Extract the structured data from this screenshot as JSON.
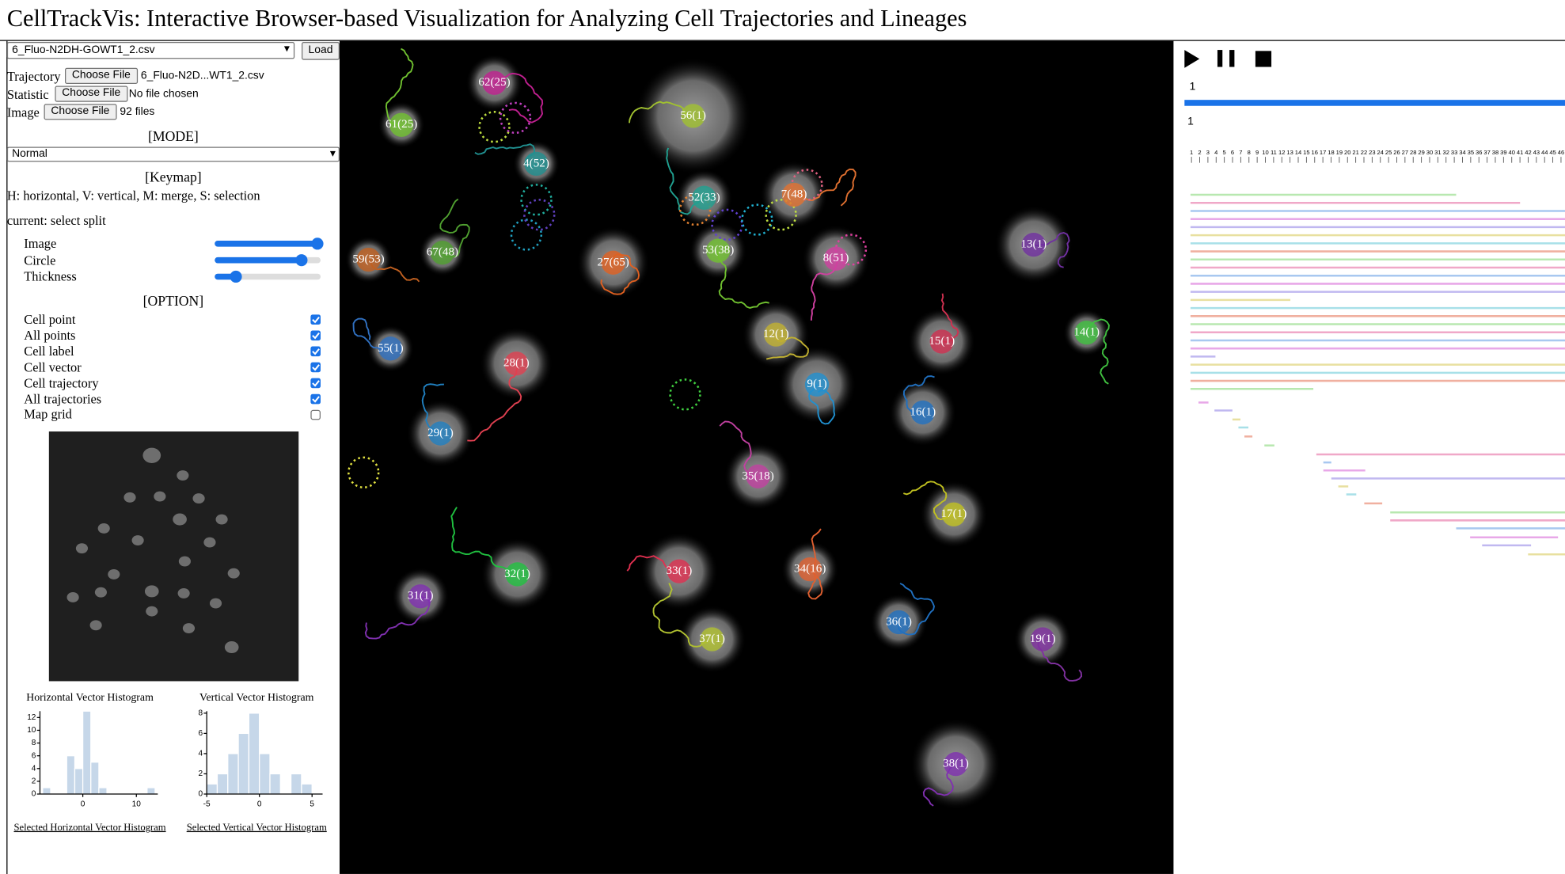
{
  "title": "CellTrackVis: Interactive Browser-based Visualization for Analyzing Cell Trajectories and Lineages",
  "controls": {
    "dataset_select": "6_Fluo-N2DH-GOWT1_2.csv",
    "load_button": "Load",
    "files": [
      {
        "label": "Trajectory",
        "button": "Choose File",
        "status": "6_Fluo-N2D...WT1_2.csv"
      },
      {
        "label": "Statistic",
        "button": "Choose File",
        "status": "No file chosen"
      },
      {
        "label": "Image",
        "button": "Choose File",
        "status": "92 files"
      }
    ]
  },
  "mode": {
    "heading": "[MODE]",
    "selected": "Normal"
  },
  "keymap": {
    "heading": "[Keymap]",
    "text": "H: horizontal, V: vertical, M: merge, S: selection",
    "current": "current: select split"
  },
  "sliders": [
    "Image",
    "Circle",
    "Thickness"
  ],
  "options": {
    "heading": "[OPTION]",
    "items": [
      {
        "label": "Cell point",
        "checked": true
      },
      {
        "label": "All points",
        "checked": true
      },
      {
        "label": "Cell label",
        "checked": true
      },
      {
        "label": "Cell vector",
        "checked": true
      },
      {
        "label": "Cell trajectory",
        "checked": true
      },
      {
        "label": "All trajectories",
        "checked": true
      },
      {
        "label": "Map grid",
        "checked": false
      }
    ]
  },
  "histograms": [
    {
      "title": "Horizontal Vector Histogram",
      "bins": [
        -7.5,
        -6,
        -4.5,
        -3,
        -1.5,
        0,
        1.5,
        3,
        4.5,
        6,
        7.5,
        9,
        10.5,
        12,
        13.5
      ],
      "counts": [
        1,
        0,
        0,
        6,
        4,
        13,
        5,
        1,
        0,
        0,
        0,
        0,
        0,
        1
      ],
      "xlim": [
        -8,
        14
      ],
      "ylim": [
        0,
        13
      ],
      "xticks": [
        0,
        10
      ],
      "yticks": [
        0,
        2,
        4,
        6,
        8,
        10,
        12
      ],
      "link": "Selected Horizontal Vector Histogram"
    },
    {
      "title": "Vertical Vector Histogram",
      "bins": [
        -5,
        -4,
        -3,
        -2,
        -1,
        0,
        1,
        2,
        3,
        4,
        5,
        6
      ],
      "counts": [
        1,
        2,
        4,
        6,
        8,
        4,
        2,
        0,
        2,
        1,
        0
      ],
      "xlim": [
        -5,
        6
      ],
      "ylim": [
        0,
        8.2
      ],
      "xticks": [
        -5,
        0,
        5
      ],
      "yticks": [
        0,
        2,
        4,
        6,
        8
      ],
      "link": "Selected Vertical Vector Histogram"
    }
  ],
  "cells": [
    {
      "label": "62(25)",
      "color": "#c02090"
    },
    {
      "label": "56(1)",
      "color": "#a0c030"
    },
    {
      "label": "61(25)",
      "color": "#70c030"
    },
    {
      "label": "4(52)",
      "color": "#209090"
    },
    {
      "label": "7(48)",
      "color": "#e07030"
    },
    {
      "label": "52(33)",
      "color": "#20a090"
    },
    {
      "label": "13(1)",
      "color": "#7030a0"
    },
    {
      "label": "59(53)",
      "color": "#c06020"
    },
    {
      "label": "67(48)",
      "color": "#50a030"
    },
    {
      "label": "27(65)",
      "color": "#e06020"
    },
    {
      "label": "53(38)",
      "color": "#70c030"
    },
    {
      "label": "8(51)",
      "color": "#d040a0"
    },
    {
      "label": "14(1)",
      "color": "#40c040"
    },
    {
      "label": "12(1)",
      "color": "#c0b030"
    },
    {
      "label": "15(1)",
      "color": "#d03050"
    },
    {
      "label": "55(1)",
      "color": "#3070c0"
    },
    {
      "label": "28(1)",
      "color": "#e04050"
    },
    {
      "label": "9(1)",
      "color": "#2090d0"
    },
    {
      "label": "16(1)",
      "color": "#2070c0"
    },
    {
      "label": "29(1)",
      "color": "#2080c0"
    },
    {
      "label": "35(18)",
      "color": "#c040a0"
    },
    {
      "label": "17(1)",
      "color": "#c0c020"
    },
    {
      "label": "32(1)",
      "color": "#20c040"
    },
    {
      "label": "33(1)",
      "color": "#e03050"
    },
    {
      "label": "34(16)",
      "color": "#e06030"
    },
    {
      "label": "31(1)",
      "color": "#8030b0"
    },
    {
      "label": "36(1)",
      "color": "#2070c0"
    },
    {
      "label": "19(1)",
      "color": "#8030a0"
    },
    {
      "label": "37(1)",
      "color": "#b0c030"
    },
    {
      "label": "38(1)",
      "color": "#8030b0"
    }
  ],
  "timeline": {
    "frame_label": 1,
    "current_frame": 1,
    "ruler": [
      1,
      2,
      3,
      4,
      5,
      6,
      7,
      8,
      9,
      10,
      11,
      12,
      13,
      14,
      15,
      16,
      17,
      18,
      19,
      20,
      21,
      22,
      23,
      24,
      25,
      26,
      27,
      28,
      29,
      30,
      31,
      32,
      33,
      34,
      35,
      36,
      37,
      38,
      39,
      40,
      41,
      42,
      43,
      44,
      45,
      46
    ]
  }
}
